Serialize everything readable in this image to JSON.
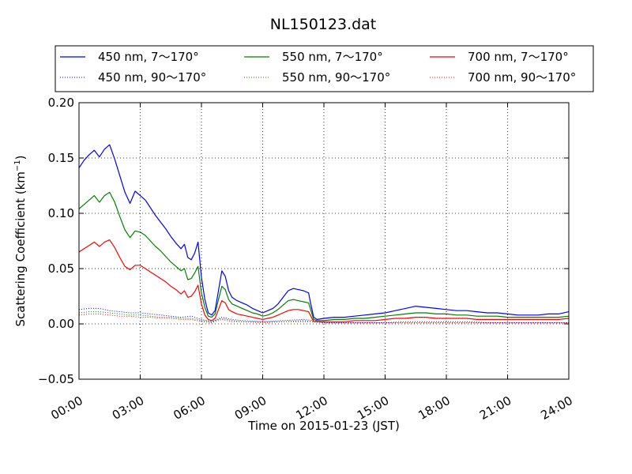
{
  "chart_data": {
    "type": "line",
    "title": "NL150123.dat",
    "xlabel": "Time on 2015-01-23 (JST)",
    "ylabel": "Scattering Coefficient (km",
    "ylabel_sup": "−1",
    "ylabel_close": ")",
    "xlim": [
      "00:00",
      "24:00"
    ],
    "ylim": [
      -0.05,
      0.2
    ],
    "grid": true,
    "legend_position": "top",
    "x_ticks": [
      "00:00",
      "03:00",
      "06:00",
      "09:00",
      "12:00",
      "15:00",
      "18:00",
      "21:00",
      "24:00"
    ],
    "y_ticks": [
      "−0.05",
      "0.00",
      "0.05",
      "0.10",
      "0.15",
      "0.20"
    ],
    "series": [
      {
        "name": "450 nm, 7～170°",
        "color": "#0000ff",
        "style": "solid",
        "x": [
          "00:00",
          "00:15",
          "00:30",
          "00:45",
          "01:00",
          "01:15",
          "01:30",
          "01:45",
          "02:00",
          "02:15",
          "02:30",
          "02:45",
          "03:00",
          "03:15",
          "03:30",
          "03:45",
          "04:00",
          "04:15",
          "04:30",
          "04:45",
          "05:00",
          "05:10",
          "05:20",
          "05:30",
          "05:40",
          "05:50",
          "06:00",
          "06:10",
          "06:20",
          "06:30",
          "06:40",
          "06:50",
          "07:00",
          "07:10",
          "07:20",
          "07:30",
          "07:45",
          "08:00",
          "08:15",
          "08:30",
          "08:45",
          "09:00",
          "09:15",
          "09:30",
          "09:45",
          "10:00",
          "10:15",
          "10:30",
          "10:45",
          "11:00",
          "11:15",
          "11:20",
          "11:30",
          "11:40",
          "12:00",
          "12:30",
          "13:00",
          "13:30",
          "14:00",
          "14:30",
          "15:00",
          "15:30",
          "16:00",
          "16:30",
          "17:00",
          "17:30",
          "18:00",
          "18:30",
          "19:00",
          "19:30",
          "20:00",
          "20:30",
          "21:00",
          "21:30",
          "22:00",
          "22:30",
          "23:00",
          "23:30",
          "24:00"
        ],
        "values": [
          0.141,
          0.148,
          0.153,
          0.157,
          0.151,
          0.158,
          0.162,
          0.149,
          0.134,
          0.119,
          0.109,
          0.12,
          0.116,
          0.112,
          0.105,
          0.098,
          0.092,
          0.086,
          0.079,
          0.073,
          0.068,
          0.072,
          0.06,
          0.058,
          0.064,
          0.074,
          0.042,
          0.022,
          0.01,
          0.008,
          0.012,
          0.03,
          0.048,
          0.043,
          0.03,
          0.024,
          0.021,
          0.019,
          0.017,
          0.014,
          0.012,
          0.01,
          0.012,
          0.014,
          0.018,
          0.024,
          0.03,
          0.032,
          0.031,
          0.03,
          0.028,
          0.02,
          0.006,
          0.004,
          0.005,
          0.006,
          0.006,
          0.007,
          0.008,
          0.009,
          0.01,
          0.012,
          0.014,
          0.016,
          0.015,
          0.014,
          0.013,
          0.012,
          0.012,
          0.011,
          0.01,
          0.01,
          0.009,
          0.008,
          0.008,
          0.008,
          0.009,
          0.009,
          0.011
        ]
      },
      {
        "name": "550 nm, 7～170°",
        "color": "#008000",
        "style": "solid",
        "x": [
          "00:00",
          "00:15",
          "00:30",
          "00:45",
          "01:00",
          "01:15",
          "01:30",
          "01:45",
          "02:00",
          "02:15",
          "02:30",
          "02:45",
          "03:00",
          "03:15",
          "03:30",
          "03:45",
          "04:00",
          "04:15",
          "04:30",
          "04:45",
          "05:00",
          "05:10",
          "05:20",
          "05:30",
          "05:40",
          "05:50",
          "06:00",
          "06:10",
          "06:20",
          "06:30",
          "06:40",
          "06:50",
          "07:00",
          "07:10",
          "07:20",
          "07:30",
          "07:45",
          "08:00",
          "08:15",
          "08:30",
          "08:45",
          "09:00",
          "09:15",
          "09:30",
          "09:45",
          "10:00",
          "10:15",
          "10:30",
          "10:45",
          "11:00",
          "11:15",
          "11:20",
          "11:30",
          "11:40",
          "12:00",
          "12:30",
          "13:00",
          "13:30",
          "14:00",
          "14:30",
          "15:00",
          "15:30",
          "16:00",
          "16:30",
          "17:00",
          "17:30",
          "18:00",
          "18:30",
          "19:00",
          "19:30",
          "20:00",
          "20:30",
          "21:00",
          "21:30",
          "22:00",
          "22:30",
          "23:00",
          "23:30",
          "24:00"
        ],
        "values": [
          0.104,
          0.108,
          0.112,
          0.116,
          0.11,
          0.116,
          0.119,
          0.11,
          0.097,
          0.085,
          0.078,
          0.084,
          0.083,
          0.08,
          0.075,
          0.07,
          0.066,
          0.061,
          0.056,
          0.052,
          0.048,
          0.05,
          0.04,
          0.041,
          0.046,
          0.052,
          0.028,
          0.015,
          0.007,
          0.006,
          0.009,
          0.022,
          0.034,
          0.031,
          0.022,
          0.018,
          0.016,
          0.014,
          0.012,
          0.01,
          0.009,
          0.007,
          0.008,
          0.01,
          0.013,
          0.017,
          0.021,
          0.022,
          0.021,
          0.02,
          0.019,
          0.014,
          0.004,
          0.003,
          0.003,
          0.004,
          0.004,
          0.005,
          0.005,
          0.006,
          0.007,
          0.008,
          0.009,
          0.01,
          0.01,
          0.009,
          0.009,
          0.008,
          0.008,
          0.007,
          0.007,
          0.007,
          0.006,
          0.006,
          0.006,
          0.006,
          0.006,
          0.006,
          0.007
        ]
      },
      {
        "name": "700 nm, 7～170°",
        "color": "#ff0000",
        "style": "solid",
        "x": [
          "00:00",
          "00:15",
          "00:30",
          "00:45",
          "01:00",
          "01:15",
          "01:30",
          "01:45",
          "02:00",
          "02:15",
          "02:30",
          "02:45",
          "03:00",
          "03:15",
          "03:30",
          "03:45",
          "04:00",
          "04:15",
          "04:30",
          "04:45",
          "05:00",
          "05:10",
          "05:20",
          "05:30",
          "05:40",
          "05:50",
          "06:00",
          "06:10",
          "06:20",
          "06:30",
          "06:40",
          "06:50",
          "07:00",
          "07:10",
          "07:20",
          "07:30",
          "07:45",
          "08:00",
          "08:15",
          "08:30",
          "08:45",
          "09:00",
          "09:15",
          "09:30",
          "09:45",
          "10:00",
          "10:15",
          "10:30",
          "10:45",
          "11:00",
          "11:15",
          "11:20",
          "11:30",
          "11:40",
          "12:00",
          "12:30",
          "13:00",
          "13:30",
          "14:00",
          "14:30",
          "15:00",
          "15:30",
          "16:00",
          "16:30",
          "17:00",
          "17:30",
          "18:00",
          "18:30",
          "19:00",
          "19:30",
          "20:00",
          "20:30",
          "21:00",
          "21:30",
          "22:00",
          "22:30",
          "23:00",
          "23:30",
          "24:00"
        ],
        "values": [
          0.065,
          0.068,
          0.071,
          0.074,
          0.07,
          0.074,
          0.076,
          0.069,
          0.06,
          0.052,
          0.049,
          0.053,
          0.053,
          0.05,
          0.047,
          0.044,
          0.041,
          0.038,
          0.034,
          0.031,
          0.027,
          0.03,
          0.024,
          0.025,
          0.029,
          0.035,
          0.018,
          0.008,
          0.004,
          0.003,
          0.005,
          0.013,
          0.021,
          0.019,
          0.013,
          0.011,
          0.009,
          0.008,
          0.007,
          0.006,
          0.005,
          0.004,
          0.005,
          0.006,
          0.008,
          0.01,
          0.012,
          0.013,
          0.013,
          0.012,
          0.011,
          0.008,
          0.002,
          0.002,
          0.002,
          0.002,
          0.002,
          0.003,
          0.003,
          0.003,
          0.004,
          0.005,
          0.005,
          0.006,
          0.006,
          0.005,
          0.005,
          0.005,
          0.005,
          0.004,
          0.004,
          0.004,
          0.004,
          0.004,
          0.004,
          0.004,
          0.004,
          0.004,
          0.005
        ]
      },
      {
        "name": "450 nm, 90～170°",
        "color": "#0000ff",
        "style": "dotted",
        "x": [
          "00:00",
          "00:30",
          "01:00",
          "01:30",
          "02:00",
          "02:30",
          "03:00",
          "03:30",
          "04:00",
          "04:30",
          "05:00",
          "05:30",
          "06:00",
          "06:30",
          "07:00",
          "07:30",
          "08:00",
          "09:00",
          "10:00",
          "11:00",
          "11:30",
          "12:00",
          "13:00",
          "14:00",
          "15:00",
          "16:00",
          "17:00",
          "18:00",
          "19:00",
          "20:00",
          "21:00",
          "22:00",
          "23:00",
          "24:00"
        ],
        "values": [
          0.013,
          0.014,
          0.014,
          0.012,
          0.011,
          0.01,
          0.01,
          0.009,
          0.008,
          0.007,
          0.006,
          0.007,
          0.004,
          0.002,
          0.006,
          0.004,
          0.003,
          0.002,
          0.003,
          0.004,
          0.003,
          0.001,
          0.001,
          0.001,
          0.001,
          0.002,
          0.002,
          0.002,
          0.002,
          0.001,
          0.001,
          0.001,
          0.001,
          0.001
        ]
      },
      {
        "name": "550 nm, 90～170°",
        "color": "#008000",
        "style": "dotted",
        "x": [
          "00:00",
          "00:30",
          "01:00",
          "01:30",
          "02:00",
          "02:30",
          "03:00",
          "03:30",
          "04:00",
          "04:30",
          "05:00",
          "05:30",
          "06:00",
          "06:30",
          "07:00",
          "07:30",
          "08:00",
          "09:00",
          "10:00",
          "11:00",
          "11:30",
          "12:00",
          "13:00",
          "14:00",
          "15:00",
          "16:00",
          "17:00",
          "18:00",
          "19:00",
          "20:00",
          "21:00",
          "22:00",
          "23:00",
          "24:00"
        ],
        "values": [
          0.01,
          0.011,
          0.011,
          0.01,
          0.009,
          0.008,
          0.008,
          0.007,
          0.006,
          0.006,
          0.005,
          0.005,
          0.003,
          0.002,
          0.005,
          0.003,
          0.002,
          0.002,
          0.002,
          0.003,
          0.002,
          0.001,
          0.001,
          0.001,
          0.001,
          0.001,
          0.001,
          0.001,
          0.001,
          0.001,
          0.001,
          0.001,
          0.001,
          0.001
        ]
      },
      {
        "name": "700 nm, 90～170°",
        "color": "#ff0000",
        "style": "dotted",
        "x": [
          "00:00",
          "00:30",
          "01:00",
          "01:30",
          "02:00",
          "02:30",
          "03:00",
          "03:30",
          "04:00",
          "04:30",
          "05:00",
          "05:30",
          "06:00",
          "06:30",
          "07:00",
          "07:30",
          "08:00",
          "09:00",
          "10:00",
          "11:00",
          "11:30",
          "12:00",
          "13:00",
          "14:00",
          "15:00",
          "16:00",
          "17:00",
          "18:00",
          "19:00",
          "20:00",
          "21:00",
          "22:00",
          "23:00",
          "24:00"
        ],
        "values": [
          0.008,
          0.009,
          0.009,
          0.008,
          0.007,
          0.007,
          0.006,
          0.006,
          0.005,
          0.005,
          0.004,
          0.004,
          0.002,
          0.001,
          0.004,
          0.002,
          0.002,
          0.001,
          0.002,
          0.002,
          0.002,
          0.001,
          0.001,
          0.001,
          0.001,
          0.001,
          0.001,
          0.001,
          0.001,
          0.001,
          0.001,
          0.001,
          0.001,
          0.001
        ]
      }
    ]
  }
}
